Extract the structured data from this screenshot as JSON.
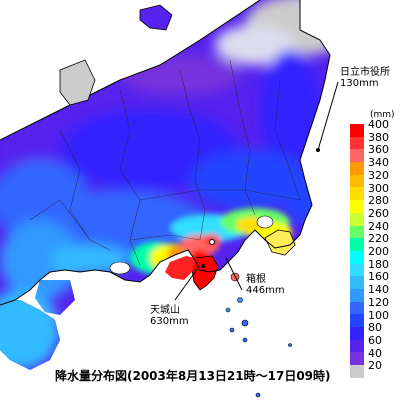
{
  "map": {
    "caption": "降水量分布図(2003年8月13日21時～17日09時)",
    "legend": {
      "unit": "(mm)",
      "ticks": [
        "400",
        "380",
        "360",
        "340",
        "320",
        "300",
        "280",
        "260",
        "240",
        "220",
        "200",
        "180",
        "160",
        "140",
        "120",
        "100",
        "80",
        "60",
        "40",
        "20"
      ],
      "colors": [
        "#ff0000",
        "#ff3333",
        "#ff6666",
        "#ff9900",
        "#ffbb00",
        "#ffdd00",
        "#ffff00",
        "#ccff33",
        "#66ff66",
        "#00ffaa",
        "#00ffff",
        "#33ddff",
        "#33bbff",
        "#3399ff",
        "#3366ff",
        "#2244ff",
        "#3322ff",
        "#5522ee",
        "#7733dd",
        "#cccccc"
      ]
    },
    "annotations": [
      {
        "name": "日立市役所",
        "value": "130mm"
      },
      {
        "name": "箱根",
        "value": "446mm"
      },
      {
        "name": "天城山",
        "value": "630mm"
      }
    ]
  }
}
